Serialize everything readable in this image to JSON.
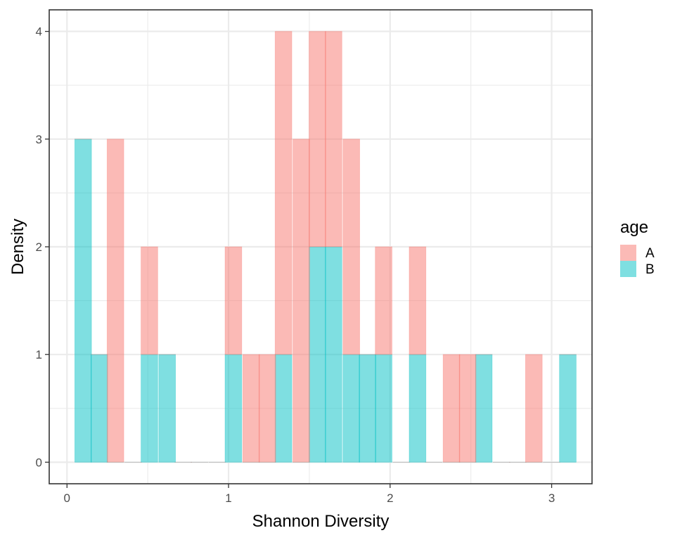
{
  "chart_data": {
    "type": "bar",
    "xlabel": "Shannon Diversity",
    "ylabel": "Density",
    "xlim": [
      -0.11,
      3.25
    ],
    "ylim": [
      -0.2,
      4.2
    ],
    "x_ticks": [
      0,
      1,
      2,
      3
    ],
    "y_ticks": [
      0,
      1,
      2,
      3,
      4
    ],
    "grid": true,
    "legend": {
      "title": "age",
      "position": "right"
    },
    "bin_width": 0.1035,
    "bar_style": "stacked",
    "series": [
      {
        "name": "A",
        "color": "#F8766D",
        "bin_centers": [
          0.1,
          0.2,
          0.3,
          0.41,
          0.51,
          0.62,
          0.72,
          0.82,
          0.93,
          1.03,
          1.14,
          1.24,
          1.34,
          1.45,
          1.55,
          1.65,
          1.76,
          1.86,
          1.96,
          2.07,
          2.17,
          2.27,
          2.38,
          2.48,
          2.58,
          2.69,
          2.79,
          2.89,
          3.0,
          3.1
        ],
        "values": [
          0,
          0,
          3,
          0,
          1,
          0,
          0,
          0,
          0,
          1,
          1,
          1,
          3,
          3,
          2,
          2,
          2,
          0,
          1,
          0,
          1,
          0,
          1,
          1,
          0,
          0,
          0,
          1,
          0,
          0
        ]
      },
      {
        "name": "B",
        "color": "#00BFC4",
        "bin_centers": [
          0.1,
          0.2,
          0.3,
          0.41,
          0.51,
          0.62,
          0.72,
          0.82,
          0.93,
          1.03,
          1.14,
          1.24,
          1.34,
          1.45,
          1.55,
          1.65,
          1.76,
          1.86,
          1.96,
          2.07,
          2.17,
          2.27,
          2.38,
          2.48,
          2.58,
          2.69,
          2.79,
          2.89,
          3.0,
          3.1
        ],
        "values": [
          3,
          1,
          0,
          0,
          1,
          1,
          0,
          0,
          0,
          1,
          0,
          0,
          1,
          0,
          2,
          2,
          1,
          1,
          1,
          0,
          1,
          0,
          0,
          0,
          1,
          0,
          0,
          0,
          0,
          1
        ]
      }
    ]
  }
}
